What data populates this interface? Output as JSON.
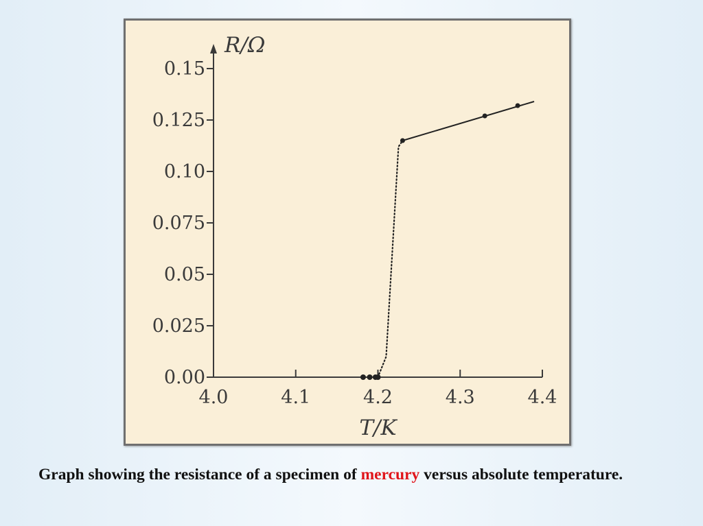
{
  "caption": {
    "before": "Graph showing the resistance of a specimen of ",
    "highlight": "mercury",
    "after": " versus absolute temperature.",
    "highlight_color": "#e0141a"
  },
  "chart_data": {
    "type": "line",
    "xlabel": "T/K",
    "ylabel": "R/Ω",
    "xlim": [
      4.0,
      4.4
    ],
    "ylim": [
      0.0,
      0.15
    ],
    "x_ticks": [
      "4.0",
      "4.1",
      "4.2",
      "4.3",
      "4.4"
    ],
    "y_ticks": [
      "0.00",
      "0.025",
      "0.05",
      "0.075",
      "0.10",
      "0.125",
      "0.15"
    ],
    "grid": false,
    "series": [
      {
        "style": "solid",
        "points": [
          [
            4.23,
            0.115
          ],
          [
            4.33,
            0.127
          ],
          [
            4.37,
            0.132
          ]
        ],
        "line_extent_x": [
          4.23,
          4.39
        ],
        "line_end_y": 0.134
      },
      {
        "style": "dotted",
        "points": [
          [
            4.2,
            0.0
          ],
          [
            4.21,
            0.01
          ],
          [
            4.225,
            0.112
          ],
          [
            4.23,
            0.115
          ]
        ]
      },
      {
        "style": "markers",
        "points": [
          [
            4.182,
            0.0
          ],
          [
            4.19,
            0.0
          ],
          [
            4.197,
            0.0
          ],
          [
            4.2,
            0.0
          ]
        ]
      }
    ],
    "colors": {
      "panel": "#faefd8",
      "axis": "#3a3a3a",
      "data": "#222222"
    }
  }
}
